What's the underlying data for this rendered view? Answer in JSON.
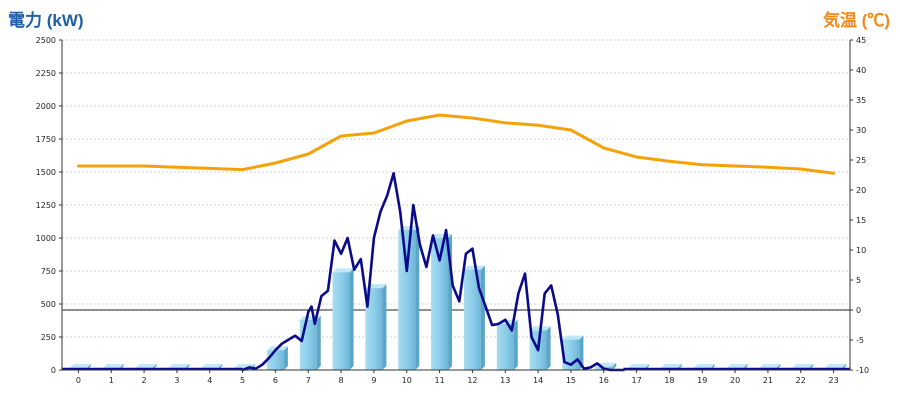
{
  "chart_data": {
    "type": "bar",
    "left_axis_label": "電力 (kW)",
    "right_axis_label": "気温 (℃)",
    "categories": [
      "0",
      "1",
      "2",
      "3",
      "4",
      "5",
      "6",
      "7",
      "8",
      "9",
      "10",
      "11",
      "12",
      "13",
      "14",
      "15",
      "16",
      "17",
      "18",
      "19",
      "20",
      "21",
      "22",
      "23"
    ],
    "left_ticks": [
      "0",
      "250",
      "500",
      "750",
      "1000",
      "1250",
      "1500",
      "1750",
      "2000",
      "2250",
      "2500"
    ],
    "right_ticks": [
      "-10",
      "-5",
      "0",
      "5",
      "10",
      "15",
      "20",
      "25",
      "30",
      "35",
      "40",
      "45"
    ],
    "ylim_left": [
      0,
      2500
    ],
    "ylim_right": [
      -10,
      45
    ],
    "grid": true,
    "series": [
      {
        "kind": "bar",
        "axis": "left",
        "color": "#87cbe8",
        "values": [
          15,
          15,
          15,
          15,
          15,
          15,
          150,
          380,
          740,
          620,
          1060,
          1000,
          760,
          350,
          300,
          230,
          25,
          15,
          15,
          15,
          15,
          15,
          15,
          15
        ]
      },
      {
        "kind": "line",
        "axis": "left",
        "color": "#0a0a8a",
        "x": [
          5,
          5.2,
          5.4,
          5.6,
          5.8,
          6.0,
          6.2,
          6.4,
          6.6,
          6.8,
          7.0,
          7.1,
          7.2,
          7.4,
          7.6,
          7.8,
          8.0,
          8.2,
          8.4,
          8.6,
          8.8,
          9.0,
          9.2,
          9.4,
          9.6,
          9.8,
          10.0,
          10.2,
          10.4,
          10.6,
          10.8,
          11.0,
          11.2,
          11.4,
          11.6,
          11.8,
          12.0,
          12.2,
          12.4,
          12.6,
          12.8,
          13.0,
          13.2,
          13.4,
          13.6,
          13.8,
          14.0,
          14.2,
          14.4,
          14.6,
          14.8,
          15.0,
          15.2,
          15.4,
          15.6,
          15.8,
          16.0,
          16.2,
          16.4,
          16.6
        ],
        "values": [
          0,
          20,
          10,
          40,
          90,
          150,
          200,
          230,
          260,
          220,
          440,
          480,
          350,
          560,
          600,
          980,
          880,
          1000,
          760,
          840,
          480,
          1000,
          1200,
          1320,
          1490,
          1200,
          750,
          1250,
          950,
          780,
          1020,
          830,
          1060,
          640,
          520,
          880,
          920,
          620,
          480,
          340,
          350,
          380,
          300,
          580,
          730,
          250,
          150,
          580,
          640,
          420,
          60,
          40,
          80,
          10,
          20,
          50,
          10,
          0,
          0,
          0
        ]
      },
      {
        "kind": "line",
        "axis": "right",
        "color": "#f5a20a",
        "x": [
          0,
          1,
          2,
          3,
          4,
          5,
          6,
          7,
          8,
          9,
          10,
          11,
          12,
          13,
          14,
          15,
          16,
          17,
          18,
          19,
          20,
          21,
          22,
          23
        ],
        "values": [
          24,
          24,
          24,
          23.8,
          23.6,
          23.4,
          24.5,
          26,
          29,
          29.5,
          31.5,
          32.5,
          32,
          31.2,
          30.8,
          30,
          27,
          25.5,
          24.8,
          24.2,
          24,
          23.8,
          23.5,
          22.8
        ]
      }
    ]
  }
}
